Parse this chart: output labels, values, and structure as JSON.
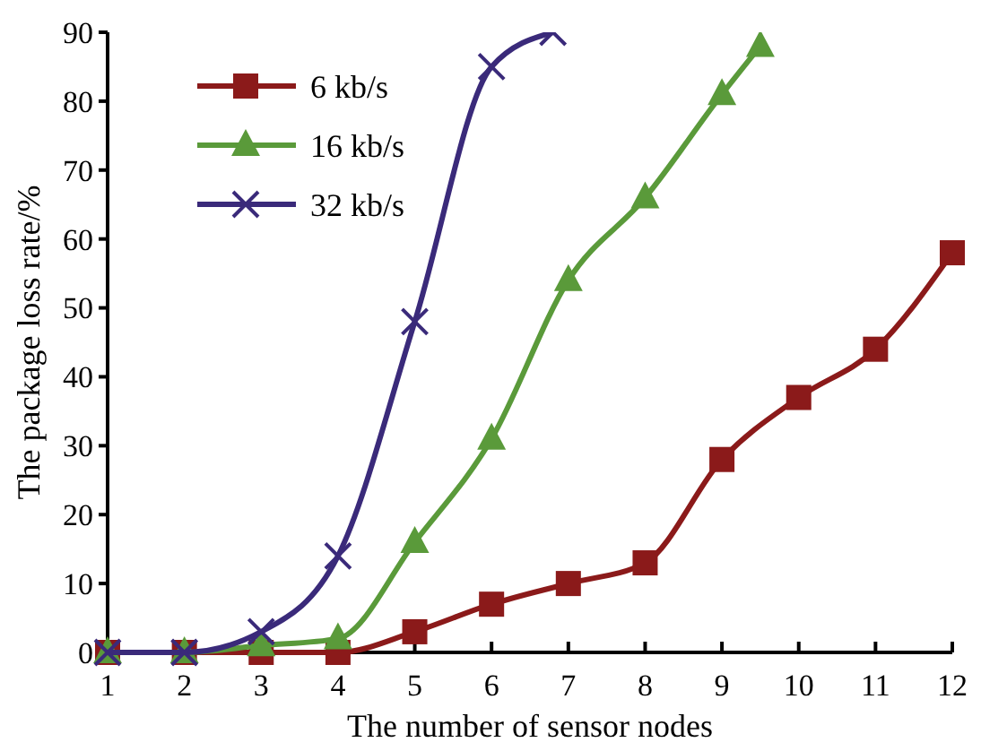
{
  "chart_data": {
    "type": "line",
    "xlabel": "The number of sensor nodes",
    "ylabel": "The package loss rate/%",
    "xlim": [
      1,
      12
    ],
    "xticks": [
      1,
      2,
      3,
      4,
      5,
      6,
      7,
      8,
      9,
      10,
      11,
      12
    ],
    "ylim": [
      0,
      90
    ],
    "yticks": [
      0,
      10,
      20,
      30,
      40,
      50,
      60,
      70,
      80,
      90
    ],
    "grid": false,
    "legend": "top left",
    "line_style": "solid",
    "series": [
      {
        "name": "6 kb/s",
        "color": "#8b1a1a",
        "marker": "square",
        "x": [
          1,
          2,
          3,
          4,
          5,
          6,
          7,
          8,
          9,
          10,
          11,
          12
        ],
        "values": [
          0,
          0,
          0,
          0,
          3,
          7,
          10,
          13,
          28,
          37,
          44,
          58
        ]
      },
      {
        "name": "16 kb/s",
        "color": "#5a9a3a",
        "marker": "triangle",
        "x": [
          1,
          2,
          3,
          4,
          5,
          6,
          7,
          8,
          9,
          9.5
        ],
        "values": [
          0,
          0,
          1,
          2,
          16,
          31,
          54,
          66,
          81,
          88
        ]
      },
      {
        "name": "32 kb/s",
        "color": "#3a2a7a",
        "marker": "cross",
        "x": [
          1,
          2,
          3,
          4,
          5,
          6,
          6.8
        ],
        "values": [
          0,
          0,
          3,
          14,
          48,
          85,
          90
        ]
      }
    ]
  }
}
